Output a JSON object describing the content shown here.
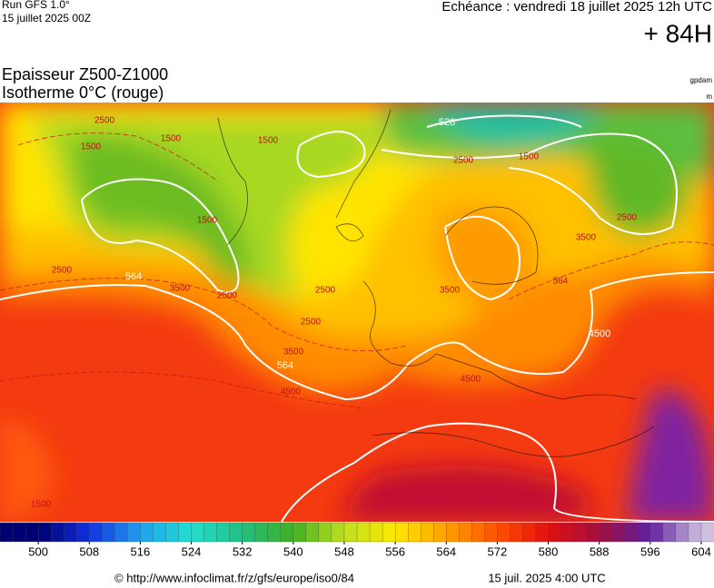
{
  "header": {
    "run": "Run GFS 1.0°",
    "date": "15 juillet 2025 00Z",
    "echeance": "Echéance : vendredi 18 juillet 2025 12h UTC",
    "lead": "+ 84H"
  },
  "titles": {
    "line1": "Epaisseur Z500-Z1000",
    "line2": "Isotherme 0°C (rouge)",
    "unit1": "gpdam",
    "unit2": "m"
  },
  "map": {
    "labels": [
      "528",
      "1500",
      "1500",
      "1500",
      "1500",
      "1500",
      "2500",
      "2500",
      "2500",
      "2500",
      "2500",
      "2500",
      "3500",
      "3500",
      "3500",
      "3500",
      "564",
      "564",
      "564",
      "4500",
      "4500",
      "4500",
      "1500",
      "2500"
    ]
  },
  "colorbar": {
    "range": [
      494,
      606
    ],
    "step": 2,
    "ticks": [
      500,
      508,
      516,
      524,
      532,
      540,
      548,
      556,
      564,
      572,
      580,
      588,
      596,
      604
    ],
    "colors": [
      "#000070",
      "#1030e0",
      "#20a0f0",
      "#20e0d0",
      "#20c080",
      "#40b020",
      "#c0e020",
      "#ffe800",
      "#ffa000",
      "#ff5000",
      "#e01010",
      "#a01040",
      "#6020a0",
      "#d0c0e0"
    ]
  },
  "footer": {
    "url": "© http://www.infoclimat.fr/z/gfs/europe/iso0/84",
    "time": "15 juil. 2025  4:00 UTC"
  }
}
